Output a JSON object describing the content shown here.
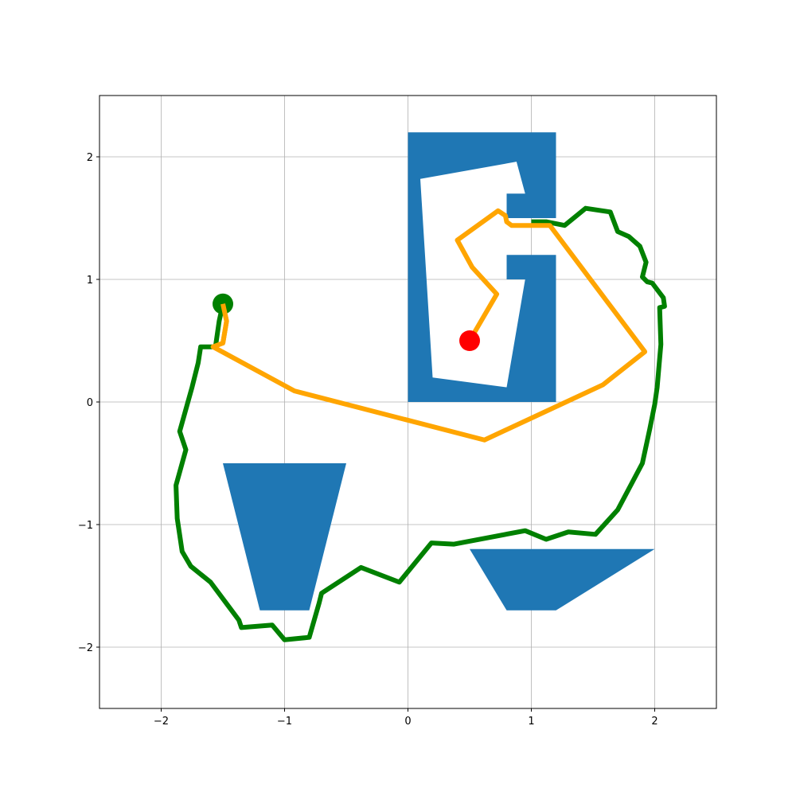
{
  "chart_data": {
    "type": "line",
    "title": "",
    "xlabel": "",
    "ylabel": "",
    "xlim": [
      -2.5,
      2.5
    ],
    "ylim": [
      -2.5,
      2.5
    ],
    "grid": true,
    "x_ticks": [
      -2,
      -1,
      0,
      1,
      2
    ],
    "y_ticks": [
      -2,
      -1,
      0,
      1,
      2
    ],
    "x_tick_labels": [
      "−2",
      "−1",
      "0",
      "1",
      "2"
    ],
    "y_tick_labels": [
      "−2",
      "−1",
      "0",
      "1",
      "2"
    ],
    "colors": {
      "obstacle": "#1f77b4",
      "outer_path": "#008000",
      "inner_path": "#ffa500",
      "start_marker": "#008000",
      "goal_marker": "#ff0000",
      "grid": "#b0b0b0"
    },
    "obstacles": [
      {
        "name": "c-shape-block",
        "points": [
          [
            0.0,
            2.2
          ],
          [
            1.2,
            2.2
          ],
          [
            1.2,
            1.5
          ],
          [
            0.8,
            1.5
          ],
          [
            0.8,
            1.7
          ],
          [
            0.95,
            1.7
          ],
          [
            0.88,
            1.96
          ],
          [
            0.1,
            1.82
          ],
          [
            0.2,
            0.2
          ],
          [
            0.8,
            0.12
          ],
          [
            0.95,
            1.0
          ],
          [
            0.8,
            1.0
          ],
          [
            0.8,
            1.2
          ],
          [
            1.2,
            1.2
          ],
          [
            1.2,
            0.0
          ],
          [
            0.0,
            0.0
          ]
        ]
      },
      {
        "name": "left-trapezoid",
        "points": [
          [
            -1.5,
            -0.5
          ],
          [
            -0.5,
            -0.5
          ],
          [
            -0.8,
            -1.7
          ],
          [
            -1.2,
            -1.7
          ]
        ]
      },
      {
        "name": "right-trapezoid",
        "points": [
          [
            0.5,
            -1.2
          ],
          [
            2.0,
            -1.2
          ],
          [
            1.2,
            -1.7
          ],
          [
            0.8,
            -1.7
          ]
        ]
      }
    ],
    "series": [
      {
        "points": [
          [
            -1.5,
            0.8
          ],
          [
            -1.53,
            0.66
          ],
          [
            -1.56,
            0.45
          ],
          [
            -1.68,
            0.45
          ],
          [
            -1.7,
            0.32
          ],
          [
            -1.75,
            0.12
          ],
          [
            -1.85,
            -0.24
          ],
          [
            -1.8,
            -0.39
          ],
          [
            -1.88,
            -0.68
          ],
          [
            -1.87,
            -0.95
          ],
          [
            -1.83,
            -1.22
          ],
          [
            -1.76,
            -1.34
          ],
          [
            -1.6,
            -1.47
          ],
          [
            -1.37,
            -1.78
          ],
          [
            -1.35,
            -1.84
          ],
          [
            -1.1,
            -1.82
          ],
          [
            -1.0,
            -1.94
          ],
          [
            -0.8,
            -1.92
          ],
          [
            -0.72,
            -1.64
          ],
          [
            -0.7,
            -1.56
          ],
          [
            -0.38,
            -1.35
          ],
          [
            -0.07,
            -1.47
          ],
          [
            0.19,
            -1.15
          ],
          [
            0.37,
            -1.16
          ],
          [
            0.95,
            -1.05
          ],
          [
            1.12,
            -1.12
          ],
          [
            1.3,
            -1.06
          ],
          [
            1.52,
            -1.08
          ],
          [
            1.7,
            -0.88
          ],
          [
            1.9,
            -0.5
          ],
          [
            1.96,
            -0.22
          ],
          [
            2.0,
            -0.02
          ],
          [
            2.02,
            0.12
          ],
          [
            2.05,
            0.47
          ],
          [
            2.04,
            0.77
          ],
          [
            2.08,
            0.78
          ],
          [
            2.07,
            0.85
          ],
          [
            1.98,
            0.97
          ],
          [
            1.94,
            0.98
          ],
          [
            1.9,
            1.02
          ],
          [
            1.93,
            1.14
          ],
          [
            1.88,
            1.27
          ],
          [
            1.79,
            1.35
          ],
          [
            1.7,
            1.39
          ],
          [
            1.64,
            1.55
          ],
          [
            1.44,
            1.58
          ],
          [
            1.27,
            1.44
          ],
          [
            1.12,
            1.47
          ],
          [
            1.0,
            1.47
          ]
        ]
      },
      {
        "points": [
          [
            -1.5,
            0.8
          ],
          [
            -1.47,
            0.66
          ],
          [
            -1.5,
            0.48
          ],
          [
            -1.58,
            0.45
          ],
          [
            -0.92,
            0.09
          ],
          [
            0.62,
            -0.31
          ],
          [
            1.58,
            0.14
          ],
          [
            1.92,
            0.41
          ],
          [
            1.15,
            1.44
          ],
          [
            0.84,
            1.44
          ],
          [
            0.8,
            1.47
          ],
          [
            0.79,
            1.52
          ],
          [
            0.73,
            1.56
          ],
          [
            0.4,
            1.32
          ],
          [
            0.52,
            1.1
          ],
          [
            0.72,
            0.88
          ],
          [
            0.5,
            0.5
          ]
        ]
      }
    ],
    "markers": [
      {
        "name": "start",
        "point": [
          -1.5,
          0.8
        ]
      },
      {
        "name": "goal",
        "point": [
          0.5,
          0.5
        ]
      }
    ]
  }
}
